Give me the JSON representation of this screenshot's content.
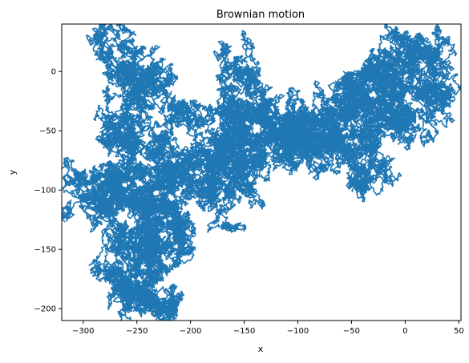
{
  "chart_data": {
    "type": "line",
    "title": "Brownian motion",
    "xlabel": "x",
    "ylabel": "y",
    "xlim": [
      -320,
      52
    ],
    "ylim": [
      -210,
      40
    ],
    "x_ticks": [
      -300,
      -250,
      -200,
      -150,
      -100,
      -50,
      0,
      50
    ],
    "y_ticks": [
      0,
      -50,
      -100,
      -150,
      -200
    ],
    "grid": false,
    "legend": "none",
    "series": [
      {
        "color": "#1f77b4",
        "path": [
          [
            -50,
            -100
          ],
          [
            -45,
            -95
          ],
          [
            -40,
            -80
          ],
          [
            -30,
            -75
          ],
          [
            -25,
            -60
          ],
          [
            -35,
            -55
          ],
          [
            -30,
            -45
          ],
          [
            -20,
            -40
          ],
          [
            -15,
            -30
          ],
          [
            -10,
            -20
          ],
          [
            -5,
            -10
          ],
          [
            0,
            0
          ],
          [
            5,
            10
          ],
          [
            15,
            15
          ],
          [
            25,
            12
          ],
          [
            30,
            5
          ],
          [
            35,
            -10
          ],
          [
            30,
            -20
          ],
          [
            35,
            -28
          ],
          [
            20,
            -30
          ],
          [
            15,
            -40
          ],
          [
            5,
            -45
          ],
          [
            0,
            -38
          ],
          [
            -10,
            -35
          ],
          [
            -20,
            -25
          ],
          [
            -25,
            -15
          ],
          [
            -15,
            -5
          ],
          [
            -10,
            5
          ],
          [
            -20,
            10
          ],
          [
            -30,
            5
          ],
          [
            -35,
            -5
          ],
          [
            -45,
            -10
          ],
          [
            -50,
            -20
          ],
          [
            -40,
            -25
          ],
          [
            -50,
            -35
          ],
          [
            -60,
            -30
          ],
          [
            -70,
            -40
          ],
          [
            -80,
            -45
          ],
          [
            -85,
            -55
          ],
          [
            -75,
            -60
          ],
          [
            -70,
            -70
          ],
          [
            -65,
            -60
          ],
          [
            -60,
            -55
          ],
          [
            -55,
            -65
          ],
          [
            -45,
            -70
          ],
          [
            -40,
            -60
          ],
          [
            -45,
            -50
          ],
          [
            -55,
            -45
          ],
          [
            -65,
            -50
          ],
          [
            -80,
            -60
          ],
          [
            -90,
            -55
          ],
          [
            -100,
            -50
          ],
          [
            -95,
            -40
          ],
          [
            -105,
            -45
          ],
          [
            -110,
            -55
          ],
          [
            -115,
            -60
          ],
          [
            -105,
            -65
          ],
          [
            -110,
            -70
          ],
          [
            -120,
            -60
          ],
          [
            -125,
            -50
          ],
          [
            -135,
            -45
          ],
          [
            -145,
            -40
          ],
          [
            -150,
            -30
          ],
          [
            -160,
            -25
          ],
          [
            -165,
            -15
          ],
          [
            -155,
            -5
          ],
          [
            -160,
            5
          ],
          [
            -150,
            0
          ],
          [
            -140,
            -10
          ],
          [
            -135,
            -20
          ],
          [
            -130,
            -30
          ],
          [
            -140,
            -35
          ],
          [
            -150,
            -45
          ],
          [
            -160,
            -50
          ],
          [
            -170,
            -45
          ],
          [
            -180,
            -40
          ],
          [
            -190,
            -45
          ],
          [
            -200,
            -40
          ],
          [
            -210,
            -35
          ],
          [
            -215,
            -25
          ],
          [
            -220,
            -15
          ],
          [
            -230,
            -10
          ],
          [
            -240,
            -5
          ],
          [
            -250,
            -10
          ],
          [
            -260,
            -5
          ],
          [
            -270,
            0
          ],
          [
            -280,
            10
          ],
          [
            -275,
            20
          ],
          [
            -265,
            25
          ],
          [
            -260,
            15
          ],
          [
            -255,
            5
          ],
          [
            -245,
            0
          ],
          [
            -240,
            -15
          ],
          [
            -250,
            -25
          ],
          [
            -260,
            -35
          ],
          [
            -270,
            -40
          ],
          [
            -275,
            -50
          ],
          [
            -265,
            -60
          ],
          [
            -255,
            -55
          ],
          [
            -245,
            -65
          ],
          [
            -235,
            -60
          ],
          [
            -225,
            -55
          ],
          [
            -215,
            -65
          ],
          [
            -210,
            -75
          ],
          [
            -220,
            -85
          ],
          [
            -230,
            -80
          ],
          [
            -240,
            -90
          ],
          [
            -250,
            -85
          ],
          [
            -260,
            -90
          ],
          [
            -270,
            -85
          ],
          [
            -275,
            -95
          ],
          [
            -285,
            -100
          ],
          [
            -295,
            -95
          ],
          [
            -305,
            -92
          ],
          [
            -300,
            -100
          ],
          [
            -290,
            -105
          ],
          [
            -285,
            -115
          ],
          [
            -275,
            -120
          ],
          [
            -265,
            -115
          ],
          [
            -255,
            -105
          ],
          [
            -245,
            -110
          ],
          [
            -235,
            -115
          ],
          [
            -225,
            -110
          ],
          [
            -215,
            -115
          ],
          [
            -210,
            -125
          ],
          [
            -220,
            -130
          ],
          [
            -215,
            -140
          ],
          [
            -205,
            -145
          ],
          [
            -215,
            -150
          ],
          [
            -225,
            -145
          ],
          [
            -235,
            -140
          ],
          [
            -245,
            -135
          ],
          [
            -255,
            -140
          ],
          [
            -260,
            -150
          ],
          [
            -265,
            -160
          ],
          [
            -270,
            -170
          ],
          [
            -265,
            -178
          ],
          [
            -255,
            -175
          ],
          [
            -250,
            -185
          ],
          [
            -260,
            -190
          ],
          [
            -255,
            -198
          ],
          [
            -245,
            -195
          ],
          [
            -235,
            -190
          ],
          [
            -225,
            -185
          ],
          [
            -220,
            -195
          ],
          [
            -230,
            -198
          ],
          [
            -240,
            -192
          ],
          [
            -235,
            -180
          ],
          [
            -228,
            -175
          ],
          [
            -235,
            -165
          ],
          [
            -245,
            -160
          ],
          [
            -240,
            -150
          ],
          [
            -230,
            -145
          ],
          [
            -225,
            -130
          ],
          [
            -235,
            -125
          ],
          [
            -245,
            -120
          ],
          [
            -250,
            -110
          ],
          [
            -240,
            -100
          ],
          [
            -230,
            -95
          ],
          [
            -220,
            -100
          ],
          [
            -215,
            -90
          ],
          [
            -205,
            -85
          ],
          [
            -195,
            -95
          ],
          [
            -185,
            -100
          ],
          [
            -180,
            -90
          ],
          [
            -175,
            -80
          ],
          [
            -170,
            -70
          ],
          [
            -160,
            -65
          ],
          [
            -150,
            -60
          ],
          [
            -140,
            -65
          ],
          [
            -135,
            -75
          ],
          [
            -140,
            -85
          ],
          [
            -150,
            -80
          ],
          [
            -155,
            -90
          ],
          [
            -160,
            -100
          ],
          [
            -170,
            -105
          ],
          [
            -180,
            -100
          ],
          [
            -190,
            -90
          ],
          [
            -195,
            -80
          ],
          [
            -185,
            -70
          ],
          [
            -175,
            -65
          ],
          [
            -165,
            -60
          ],
          [
            -150,
            -55
          ],
          [
            -140,
            -60
          ],
          [
            -130,
            -55
          ],
          [
            -120,
            -50
          ],
          [
            -110,
            -45
          ],
          [
            -100,
            -50
          ],
          [
            -90,
            -45
          ],
          [
            -80,
            -40
          ],
          [
            -70,
            -35
          ],
          [
            -60,
            -25
          ],
          [
            -50,
            -15
          ],
          [
            -40,
            -10
          ],
          [
            -30,
            -5
          ],
          [
            -20,
            0
          ],
          [
            -10,
            10
          ],
          [
            0,
            18
          ],
          [
            10,
            20
          ],
          [
            20,
            15
          ],
          [
            28,
            10
          ],
          [
            32,
            -5
          ],
          [
            38,
            -25
          ]
        ]
      }
    ]
  }
}
